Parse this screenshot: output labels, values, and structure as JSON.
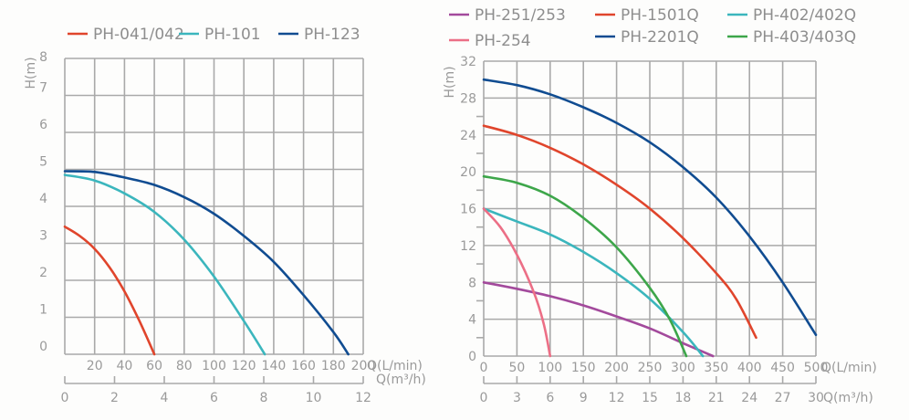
{
  "chart_data": [
    {
      "type": "line",
      "title": "",
      "legend": [
        "PH-041/042",
        "PH-101",
        "PH-123"
      ],
      "legend_position": "top",
      "ylabel": "H(m)",
      "xlabel": "Q(L/min)",
      "xlabel2": "Q(m³/h)",
      "xlim": [
        0,
        200
      ],
      "ylim": [
        0,
        8
      ],
      "grid": true,
      "x_ticks": [
        "20",
        "40",
        "60",
        "80",
        "100",
        "120",
        "140",
        "160",
        "180",
        "200"
      ],
      "x_tick_values": [
        20,
        40,
        60,
        80,
        100,
        120,
        140,
        160,
        180,
        200
      ],
      "y_ticks": [
        "0",
        "1",
        "2",
        "3",
        "4",
        "5",
        "6",
        "7",
        "8"
      ],
      "y_tick_values": [
        0,
        1,
        2,
        3,
        4,
        5,
        6,
        7,
        8
      ],
      "x2_ticks": [
        "0",
        "2",
        "4",
        "6",
        "8",
        "10",
        "12"
      ],
      "x2_tick_values": [
        0,
        2,
        4,
        6,
        8,
        10,
        12
      ],
      "x2_lim": [
        0,
        12
      ],
      "series": [
        {
          "name": "PH-041/042",
          "color": "#e0452c",
          "x": [
            0,
            10,
            20,
            30,
            40,
            50,
            60
          ],
          "y": [
            3.45,
            3.2,
            2.85,
            2.35,
            1.7,
            0.9,
            0
          ]
        },
        {
          "name": "PH-101",
          "color": "#3bb6bd",
          "x": [
            0,
            20,
            40,
            60,
            80,
            100,
            120,
            134
          ],
          "y": [
            4.85,
            4.7,
            4.35,
            3.85,
            3.1,
            2.1,
            0.9,
            0
          ]
        },
        {
          "name": "PH-123",
          "color": "#104c91",
          "x": [
            0,
            20,
            40,
            60,
            80,
            100,
            120,
            140,
            160,
            180,
            190
          ],
          "y": [
            4.95,
            4.93,
            4.78,
            4.58,
            4.25,
            3.8,
            3.2,
            2.5,
            1.6,
            0.6,
            0
          ]
        }
      ]
    },
    {
      "type": "line",
      "title": "",
      "legend": [
        "PH-251/253",
        "PH-1501Q",
        "PH-402/402Q",
        "PH-254",
        "PH-2201Q",
        "PH-403/403Q"
      ],
      "legend_position": "top",
      "ylabel": "H(m)",
      "xlabel": "Q(L/min)",
      "xlabel2": "Q(m³/h)",
      "xlim": [
        0,
        500
      ],
      "ylim": [
        0,
        32
      ],
      "grid": true,
      "x_ticks": [
        "0",
        "50",
        "100",
        "150",
        "200",
        "250",
        "300",
        "350",
        "400",
        "450",
        "500"
      ],
      "x_tick_values": [
        0,
        50,
        100,
        150,
        200,
        250,
        300,
        350,
        400,
        450,
        500
      ],
      "y_ticks": [
        "0",
        "4",
        "8",
        "12",
        "16",
        "20",
        "24",
        "28",
        "32"
      ],
      "y_tick_values": [
        0,
        4,
        8,
        12,
        16,
        20,
        24,
        28,
        32
      ],
      "y_minor_tick_values": [
        2,
        6,
        10,
        14,
        18,
        22,
        26
      ],
      "x2_ticks": [
        "0",
        "3",
        "6",
        "9",
        "12",
        "15",
        "18",
        "21",
        "24",
        "27",
        "30"
      ],
      "x2_tick_values": [
        0,
        3,
        6,
        9,
        12,
        15,
        18,
        21,
        24,
        27,
        30
      ],
      "x2_lim": [
        0,
        30
      ],
      "series": [
        {
          "name": "PH-251/253",
          "color": "#a34a9c",
          "x": [
            0,
            50,
            100,
            150,
            200,
            250,
            300,
            345
          ],
          "y": [
            8,
            7.3,
            6.5,
            5.5,
            4.3,
            3.0,
            1.4,
            0
          ]
        },
        {
          "name": "PH-1501Q",
          "color": "#e0452c",
          "x": [
            0,
            50,
            100,
            150,
            200,
            250,
            300,
            350,
            380,
            410
          ],
          "y": [
            25,
            24,
            22.6,
            20.8,
            18.6,
            16,
            12.8,
            9,
            6.2,
            2
          ]
        },
        {
          "name": "PH-402/402Q",
          "color": "#3bb6bd",
          "x": [
            0,
            50,
            100,
            150,
            200,
            250,
            300,
            330
          ],
          "y": [
            16,
            14.6,
            13.2,
            11.3,
            9,
            6.2,
            2.6,
            0
          ]
        },
        {
          "name": "PH-254",
          "color": "#ec6f86",
          "x": [
            0,
            25,
            50,
            75,
            90,
            100
          ],
          "y": [
            16,
            14,
            11,
            7,
            3.6,
            0
          ]
        },
        {
          "name": "PH-2201Q",
          "color": "#104c91",
          "x": [
            0,
            50,
            100,
            150,
            200,
            250,
            300,
            350,
            400,
            450,
            500
          ],
          "y": [
            30,
            29.4,
            28.4,
            27,
            25.3,
            23.2,
            20.5,
            17.2,
            13,
            8,
            2.3
          ]
        },
        {
          "name": "PH-403/403Q",
          "color": "#3da64a",
          "x": [
            0,
            50,
            100,
            150,
            200,
            250,
            280,
            305
          ],
          "y": [
            19.5,
            18.8,
            17.4,
            15,
            11.8,
            7.4,
            4,
            0
          ]
        }
      ]
    }
  ]
}
